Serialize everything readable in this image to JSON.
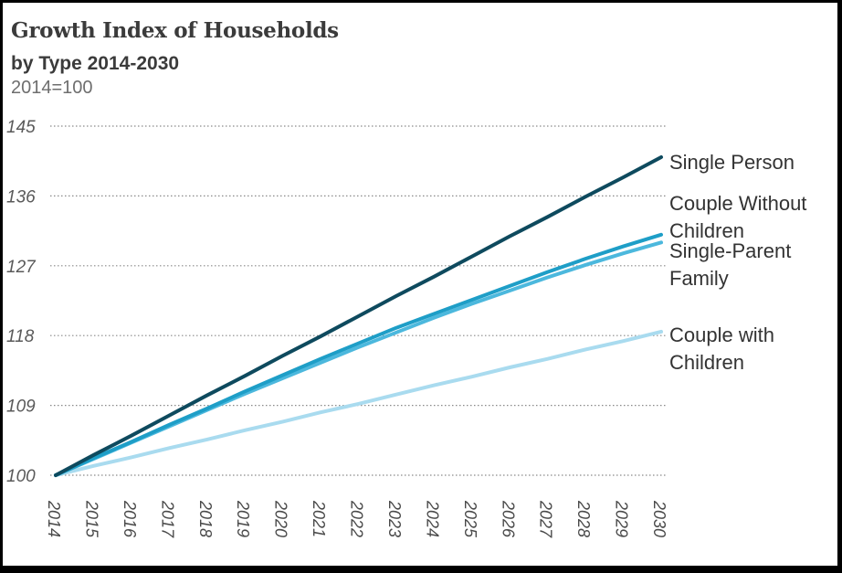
{
  "chart_data": {
    "type": "line",
    "title": "Growth Index of Households",
    "subtitle": "by Type 2014-2030",
    "note": "2014=100",
    "x": [
      2014,
      2015,
      2016,
      2017,
      2018,
      2019,
      2020,
      2021,
      2022,
      2023,
      2024,
      2025,
      2026,
      2027,
      2028,
      2029,
      2030
    ],
    "ylim": [
      100,
      145
    ],
    "yticks": [
      100,
      109,
      118,
      127,
      136,
      145
    ],
    "grid": true,
    "series": [
      {
        "name": "Single Person",
        "color": "#0e4a5e",
        "values": [
          100,
          102.6,
          105.1,
          107.7,
          110.3,
          112.8,
          115.4,
          117.9,
          120.5,
          123.1,
          125.6,
          128.2,
          130.8,
          133.3,
          135.9,
          138.4,
          141.0
        ]
      },
      {
        "name": "Couple Without Children",
        "color": "#1e9ec7",
        "values": [
          100,
          102.2,
          104.3,
          106.5,
          108.6,
          110.8,
          112.9,
          115.0,
          117.0,
          119.0,
          120.8,
          122.6,
          124.4,
          126.2,
          127.9,
          129.5,
          131.0
        ]
      },
      {
        "name": "Single-Parent Family",
        "color": "#4cb8dd",
        "values": [
          100,
          102.1,
          104.2,
          106.3,
          108.4,
          110.5,
          112.5,
          114.5,
          116.5,
          118.4,
          120.3,
          122.1,
          123.8,
          125.5,
          127.1,
          128.6,
          130.0
        ]
      },
      {
        "name": "Couple with Children",
        "color": "#a9dbef",
        "values": [
          100,
          101.2,
          102.3,
          103.5,
          104.6,
          105.8,
          106.9,
          108.1,
          109.2,
          110.4,
          111.6,
          112.7,
          113.9,
          115.0,
          116.2,
          117.3,
          118.5
        ]
      }
    ]
  }
}
